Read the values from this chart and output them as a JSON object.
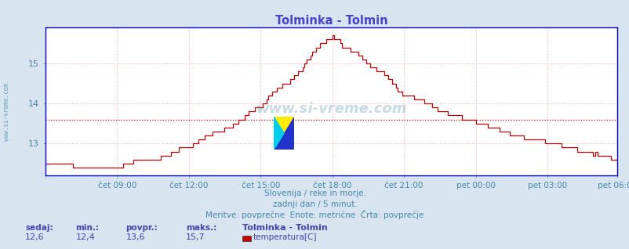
{
  "title": "Tolminka - Tolmin",
  "title_color": "#4444cc",
  "bg_color": "#d8e4f0",
  "plot_bg_color": "#ffffff",
  "line_color": "#cc0000",
  "axis_color": "#0000cc",
  "grid_color": "#ffaaaa",
  "grid_linestyle": ":",
  "xlabel_color": "#4488aa",
  "watermark": "www.si-vreme.com",
  "watermark_color": "#4488aa",
  "ylabel_left": "www.si-vreme.com",
  "subtitle1": "Slovenija / reke in morje.",
  "subtitle2": "zadnji dan / 5 minut.",
  "subtitle3": "Meritve: povprečne  Enote: metrične  Črta: povprečje",
  "subtitle_color": "#4488aa",
  "legend_title": "Tolminka - Tolmin",
  "legend_label": "temperatura[C]",
  "legend_color": "#cc0000",
  "stats_labels": [
    "sedaj:",
    "min.:",
    "povpr.:",
    "maks.:"
  ],
  "stats_values": [
    "12,6",
    "12,4",
    "13,6",
    "15,7"
  ],
  "stats_label_color": "#4444aa",
  "stats_value_color": "#4444aa",
  "ylim": [
    12.2,
    15.9
  ],
  "yticks": [
    13,
    14,
    15
  ],
  "avg_line": 13.6,
  "avg_line_color": "#cc0000",
  "avg_line_style": ":",
  "xtick_labels": [
    "čet 09:00",
    "čet 12:00",
    "čet 15:00",
    "čet 18:00",
    "čet 21:00",
    "pet 00:00",
    "pet 03:00",
    "pet 06:00"
  ],
  "xtick_positions": [
    36,
    72,
    108,
    144,
    180,
    216,
    252,
    287
  ],
  "num_points": 288
}
